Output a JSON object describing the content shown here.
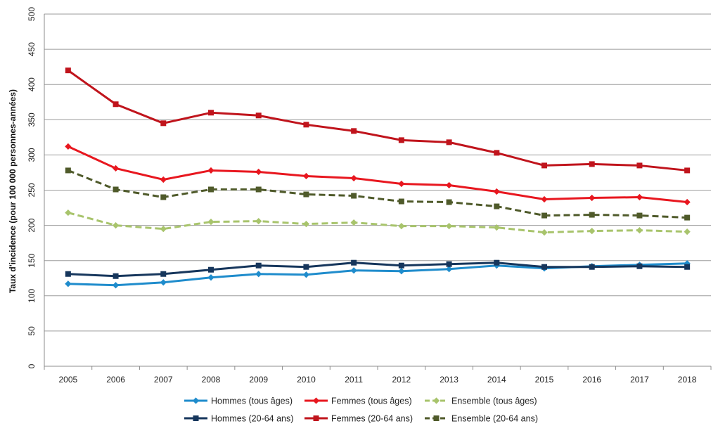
{
  "chart_data": {
    "type": "line",
    "title": "",
    "xlabel": "",
    "ylabel": "Taux d'incidence (pour 100 000 personnes-années)",
    "ylim": [
      0,
      500
    ],
    "yticks": [
      0,
      50,
      100,
      150,
      200,
      250,
      300,
      350,
      400,
      450,
      500
    ],
    "grid": true,
    "legend_position": "bottom",
    "categories": [
      "2005",
      "2006",
      "2007",
      "2008",
      "2009",
      "2010",
      "2011",
      "2012",
      "2013",
      "2014",
      "2015",
      "2016",
      "2017",
      "2018"
    ],
    "series": [
      {
        "name": "Hommes (tous âges)",
        "color": "#1f8ccc",
        "marker": "diamond",
        "dash": "solid",
        "values": [
          117,
          115,
          119,
          126,
          131,
          130,
          136,
          135,
          138,
          143,
          139,
          142,
          144,
          146
        ]
      },
      {
        "name": "Femmes (tous âges)",
        "color": "#e8171f",
        "marker": "diamond",
        "dash": "solid",
        "values": [
          312,
          281,
          265,
          278,
          276,
          270,
          267,
          259,
          257,
          248,
          237,
          239,
          240,
          233
        ]
      },
      {
        "name": "Ensemble (tous âges)",
        "color": "#a8c46c",
        "marker": "diamond",
        "dash": "dashed",
        "values": [
          218,
          200,
          195,
          205,
          206,
          202,
          204,
          199,
          199,
          197,
          190,
          192,
          193,
          191
        ]
      },
      {
        "name": "Hommes (20-64 ans)",
        "color": "#16365c",
        "marker": "square",
        "dash": "solid",
        "values": [
          131,
          128,
          131,
          137,
          143,
          141,
          147,
          143,
          145,
          147,
          141,
          141,
          142,
          141
        ]
      },
      {
        "name": "Femmes (20-64 ans)",
        "color": "#c0141c",
        "marker": "square",
        "dash": "solid",
        "values": [
          420,
          372,
          345,
          360,
          356,
          343,
          334,
          321,
          318,
          303,
          285,
          287,
          285,
          278
        ]
      },
      {
        "name": "Ensemble (20-64 ans)",
        "color": "#4f5a2a",
        "marker": "square",
        "dash": "dashed",
        "values": [
          278,
          251,
          240,
          251,
          251,
          244,
          242,
          234,
          233,
          227,
          214,
          215,
          214,
          211
        ]
      }
    ]
  }
}
